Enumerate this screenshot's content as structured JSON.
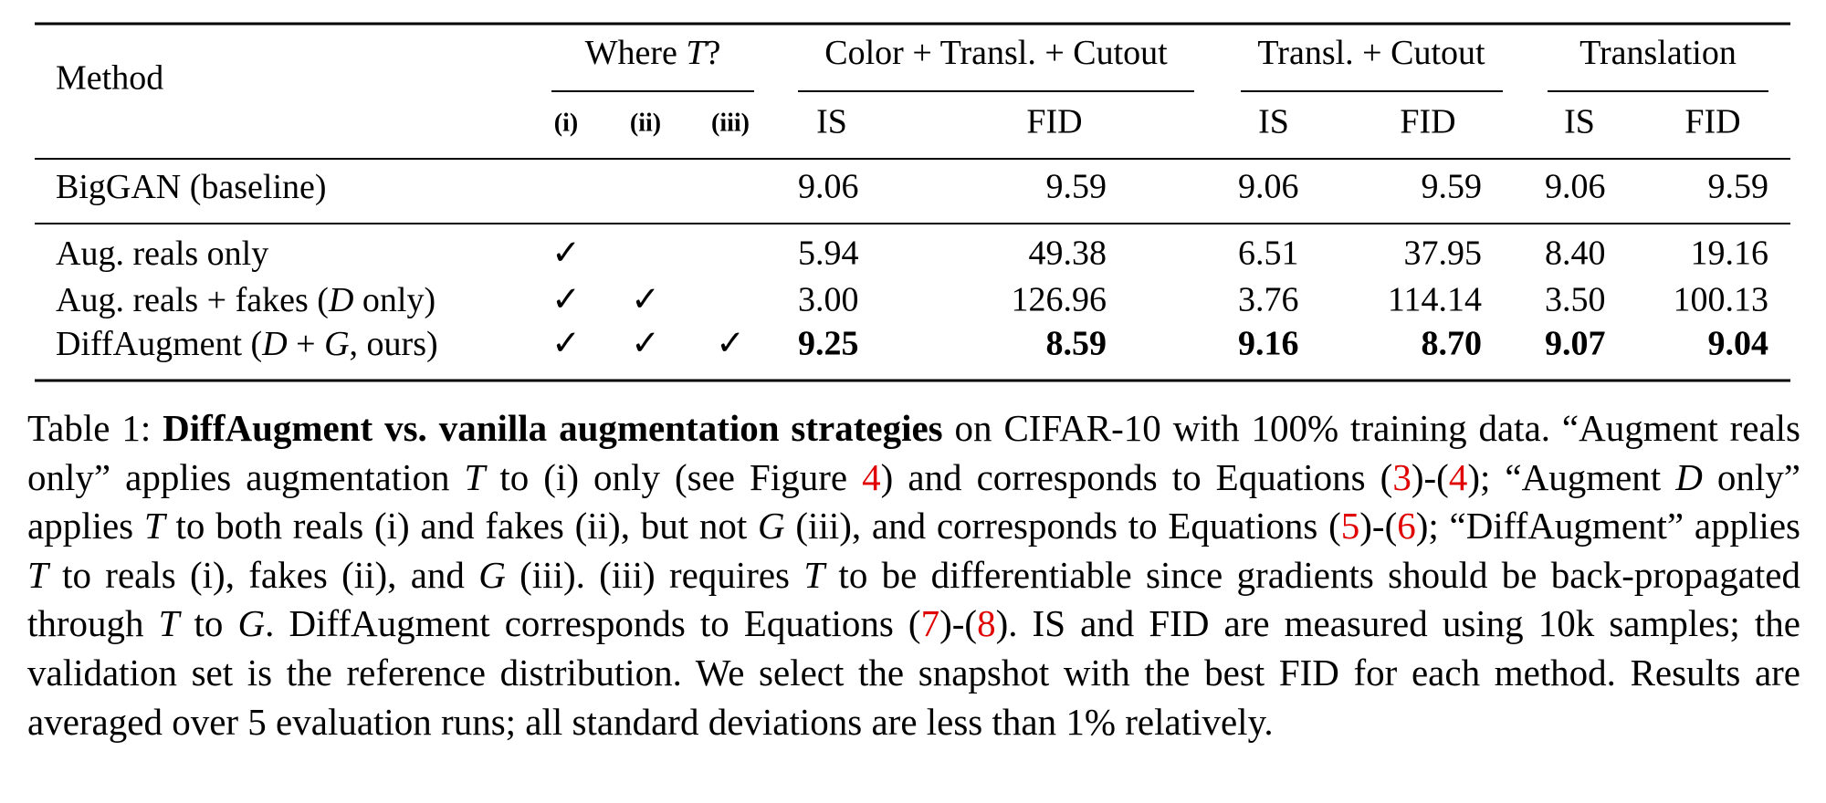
{
  "table": {
    "method_header": "Method",
    "groups": [
      {
        "label": [
          {
            "text": "Where "
          },
          {
            "text": "T",
            "style": "italic"
          },
          {
            "text": "?"
          }
        ]
      },
      {
        "label": [
          {
            "text": "Color + Transl. + Cutout"
          }
        ]
      },
      {
        "label": [
          {
            "text": "Transl. + Cutout"
          }
        ]
      },
      {
        "label": [
          {
            "text": "Translation"
          }
        ]
      }
    ],
    "subheaders": [
      "(i)",
      "(ii)",
      "(iii)",
      "IS",
      "FID",
      "IS",
      "FID",
      "IS",
      "FID"
    ],
    "rows": [
      {
        "method": [
          {
            "text": "BigGAN (baseline)"
          }
        ],
        "where": [],
        "values": [
          "9.06",
          "9.59",
          "9.06",
          "9.59",
          "9.06",
          "9.59"
        ]
      },
      {
        "method": [
          {
            "text": "Aug. reals only"
          }
        ],
        "where": [
          "✓"
        ],
        "values": [
          "5.94",
          "49.38",
          "6.51",
          "37.95",
          "8.40",
          "19.16"
        ]
      },
      {
        "method": [
          {
            "text": "Aug. reals + fakes ("
          },
          {
            "text": "D",
            "style": "italic"
          },
          {
            "text": " only)"
          }
        ],
        "where": [
          "✓",
          "✓"
        ],
        "values": [
          "3.00",
          "126.96",
          "3.76",
          "114.14",
          "3.50",
          "100.13"
        ]
      },
      {
        "method": [
          {
            "text": "DiffAugment ("
          },
          {
            "text": "D",
            "style": "italic"
          },
          {
            "text": " + "
          },
          {
            "text": "G",
            "style": "italic"
          },
          {
            "text": ", ours)"
          }
        ],
        "where": [
          "✓",
          "✓",
          "✓"
        ],
        "values": [
          "9.25",
          "8.59",
          "9.16",
          "8.70",
          "9.07",
          "9.04"
        ],
        "bold": true
      }
    ]
  },
  "caption": [
    {
      "text": "Table 1: "
    },
    {
      "text": "DiffAugment vs. vanilla augmentation strategies",
      "style": "bold"
    },
    {
      "text": " on CIFAR-10 with 100% training data. “Augment reals only” applies augmentation "
    },
    {
      "text": "T",
      "style": "italic"
    },
    {
      "text": " to (i) only (see Figure "
    },
    {
      "text": "4",
      "style": "ref"
    },
    {
      "text": ") and corresponds to Equations ("
    },
    {
      "text": "3",
      "style": "ref"
    },
    {
      "text": ")-("
    },
    {
      "text": "4",
      "style": "ref"
    },
    {
      "text": "); “Augment "
    },
    {
      "text": "D",
      "style": "italic"
    },
    {
      "text": " only” applies "
    },
    {
      "text": "T",
      "style": "italic"
    },
    {
      "text": " to both reals (i) and fakes (ii), but not "
    },
    {
      "text": "G",
      "style": "italic"
    },
    {
      "text": " (iii), and corresponds to Equations ("
    },
    {
      "text": "5",
      "style": "ref"
    },
    {
      "text": ")-("
    },
    {
      "text": "6",
      "style": "ref"
    },
    {
      "text": "); “DiffAugment” applies "
    },
    {
      "text": "T",
      "style": "italic"
    },
    {
      "text": " to reals (i), fakes (ii), and "
    },
    {
      "text": "G",
      "style": "italic"
    },
    {
      "text": " (iii). (iii) requires "
    },
    {
      "text": "T",
      "style": "italic"
    },
    {
      "text": " to be differentiable since gradients should be back-propagated through "
    },
    {
      "text": "T",
      "style": "italic"
    },
    {
      "text": " to "
    },
    {
      "text": "G",
      "style": "italic"
    },
    {
      "text": ". DiffAugment corresponds to Equations ("
    },
    {
      "text": "7",
      "style": "ref"
    },
    {
      "text": ")-("
    },
    {
      "text": "8",
      "style": "ref"
    },
    {
      "text": "). IS and FID are measured using 10k samples; the validation set is the reference distribution. We select the snapshot with the best FID for each method. Results are averaged over 5 evaluation runs; all standard deviations are less than 1% relatively."
    }
  ]
}
